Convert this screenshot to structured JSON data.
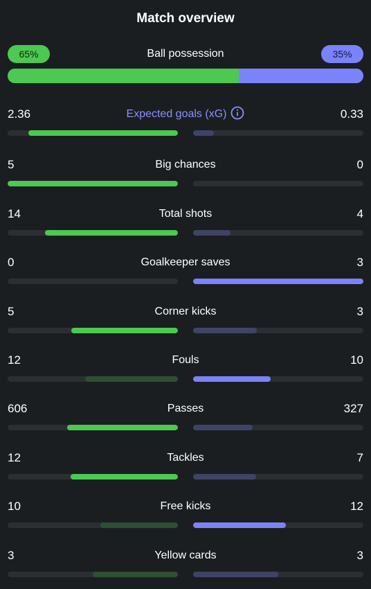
{
  "title": "Match overview",
  "possession": {
    "label": "Ball possession",
    "home_pct": "65%",
    "away_pct": "35%",
    "home_fraction": 0.65,
    "home_color": "#4cc951",
    "away_color": "#7b83fb"
  },
  "stats": [
    {
      "label": "Expected goals (xG)",
      "home": "2.36",
      "away": "0.33",
      "home_ratio": 0.88,
      "away_ratio": 0.12,
      "leader": "home",
      "info_icon": "info-icon"
    },
    {
      "label": "Big chances",
      "home": "5",
      "away": "0",
      "home_ratio": 1.0,
      "away_ratio": 0.0,
      "leader": "home"
    },
    {
      "label": "Total shots",
      "home": "14",
      "away": "4",
      "home_ratio": 0.78,
      "away_ratio": 0.22,
      "leader": "home"
    },
    {
      "label": "Goalkeeper saves",
      "home": "0",
      "away": "3",
      "home_ratio": 0.0,
      "away_ratio": 1.0,
      "leader": "away"
    },
    {
      "label": "Corner kicks",
      "home": "5",
      "away": "3",
      "home_ratio": 0.625,
      "away_ratio": 0.375,
      "leader": "home"
    },
    {
      "label": "Fouls",
      "home": "12",
      "away": "10",
      "home_ratio": 0.545,
      "away_ratio": 0.455,
      "leader": "away"
    },
    {
      "label": "Passes",
      "home": "606",
      "away": "327",
      "home_ratio": 0.65,
      "away_ratio": 0.35,
      "leader": "home"
    },
    {
      "label": "Tackles",
      "home": "12",
      "away": "7",
      "home_ratio": 0.632,
      "away_ratio": 0.368,
      "leader": "home"
    },
    {
      "label": "Free kicks",
      "home": "10",
      "away": "12",
      "home_ratio": 0.455,
      "away_ratio": 0.545,
      "leader": "away"
    },
    {
      "label": "Yellow cards",
      "home": "3",
      "away": "3",
      "home_ratio": 0.5,
      "away_ratio": 0.5,
      "leader": "none"
    }
  ]
}
